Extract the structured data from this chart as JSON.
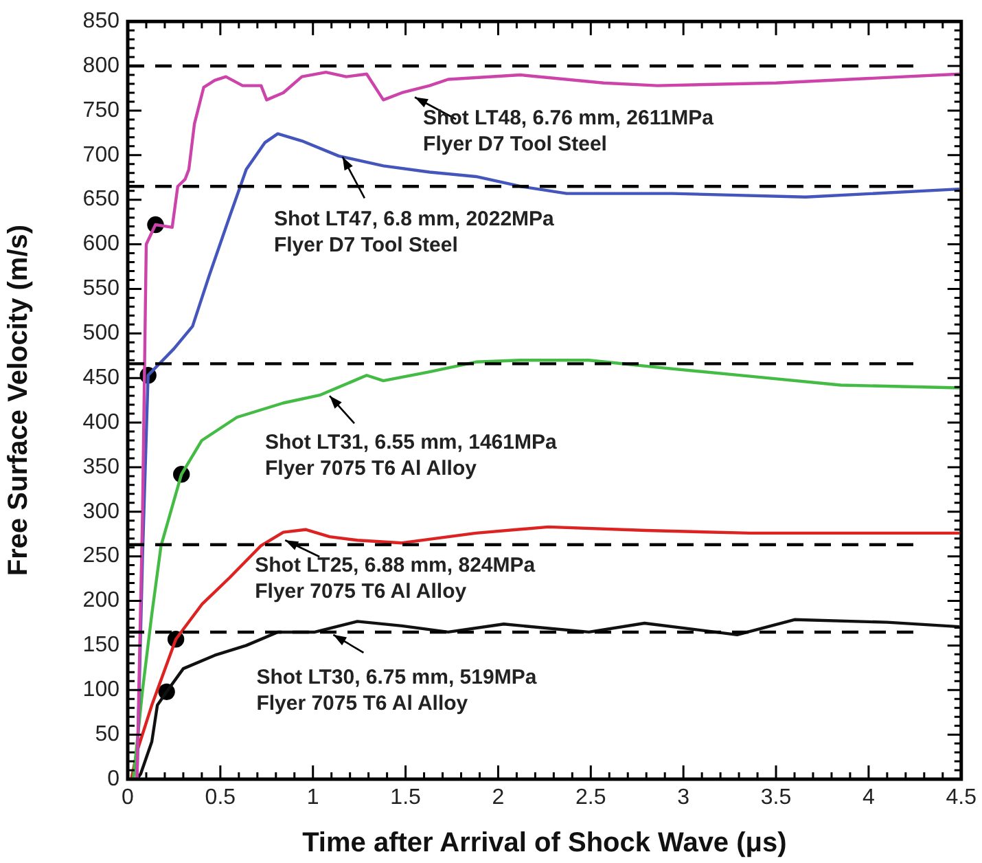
{
  "chart_data": {
    "type": "line",
    "xlabel": "Time after Arrival of Shock Wave (μs)",
    "ylabel": "Free Surface Velocity (m/s)",
    "xlim": [
      0,
      4.5
    ],
    "xticks": [
      0,
      0.5,
      1,
      1.5,
      2,
      2.5,
      3,
      3.5,
      4,
      4.5
    ],
    "ylim": [
      0,
      850
    ],
    "yticks": [
      0,
      50,
      100,
      150,
      200,
      250,
      300,
      350,
      400,
      450,
      500,
      550,
      600,
      650,
      700,
      750,
      800,
      850
    ],
    "marker": "none",
    "line_style": "solid",
    "series": [
      {
        "color": "#cc44aa",
        "x": [
          0.05,
          0.08,
          0.1,
          0.15,
          0.24,
          0.27,
          0.31,
          0.33,
          0.36,
          0.41,
          0.47,
          0.53,
          0.62,
          0.72,
          0.75,
          0.84,
          0.94,
          1.07,
          1.18,
          1.29,
          1.38,
          1.48,
          1.63,
          1.73,
          2.12,
          2.57,
          2.86,
          3.5,
          4.49
        ],
        "values": [
          0,
          300,
          600,
          622,
          619,
          665,
          673,
          684,
          735,
          776,
          784,
          788,
          778,
          778,
          762,
          770,
          788,
          793,
          788,
          791,
          762,
          770,
          778,
          785,
          790,
          781,
          778,
          781,
          791
        ]
      },
      {
        "color": "#4455bb",
        "x": [
          0.05,
          0.08,
          0.11,
          0.25,
          0.35,
          0.44,
          0.55,
          0.64,
          0.74,
          0.81,
          0.94,
          1.14,
          1.38,
          1.63,
          1.88,
          2.12,
          2.37,
          2.94,
          3.66,
          4.49
        ],
        "values": [
          0,
          250,
          453,
          483,
          508,
          565,
          631,
          684,
          714,
          724,
          716,
          699,
          688,
          681,
          676,
          665,
          657,
          657,
          653,
          662
        ]
      },
      {
        "color": "#44bb44",
        "x": [
          0.03,
          0.08,
          0.13,
          0.18,
          0.29,
          0.4,
          0.59,
          0.84,
          1.04,
          1.29,
          1.38,
          1.63,
          1.88,
          2.12,
          2.49,
          2.86,
          3.36,
          3.85,
          4.49
        ],
        "values": [
          0,
          100,
          185,
          262,
          342,
          380,
          406,
          422,
          431,
          453,
          447,
          457,
          468,
          470,
          470,
          462,
          452,
          442,
          439
        ]
      },
      {
        "color": "#dd2222",
        "x": [
          0.02,
          0.05,
          0.13,
          0.26,
          0.4,
          0.55,
          0.72,
          0.84,
          0.96,
          1.09,
          1.24,
          1.48,
          1.88,
          2.27,
          2.8,
          3.36,
          4.49
        ],
        "values": [
          0,
          31,
          83,
          157,
          196,
          226,
          262,
          277,
          280,
          272,
          268,
          265,
          276,
          283,
          279,
          276,
          276
        ]
      },
      {
        "color": "#111111",
        "x": [
          0.05,
          0.07,
          0.13,
          0.16,
          0.21,
          0.3,
          0.47,
          0.64,
          0.81,
          1.01,
          1.24,
          1.48,
          1.73,
          2.03,
          2.49,
          2.79,
          3.29,
          3.6,
          4.1,
          4.49
        ],
        "values": [
          0,
          6,
          42,
          83,
          98,
          124,
          139,
          150,
          165,
          165,
          177,
          172,
          165,
          174,
          165,
          175,
          162,
          179,
          176,
          171
        ]
      },
      {
        "type": "scatter",
        "marker": "circle",
        "color": "#000000",
        "x": [
          0.15,
          0.11,
          0.29,
          0.26,
          0.21
        ],
        "values": [
          622,
          453,
          342,
          157,
          98
        ]
      }
    ],
    "ref_lines": [
      {
        "axis": "y",
        "value": 800,
        "line_style": "dashed",
        "color": "#000000"
      },
      {
        "axis": "y",
        "value": 665,
        "line_style": "dashed",
        "color": "#000000"
      },
      {
        "axis": "y",
        "value": 466,
        "line_style": "dashed",
        "color": "#000000"
      },
      {
        "axis": "y",
        "value": 263,
        "line_style": "dashed",
        "color": "#000000"
      },
      {
        "axis": "y",
        "value": 165,
        "line_style": "dashed",
        "color": "#000000"
      }
    ],
    "annotations": [
      {
        "text": "Shot LT48, 6.76 mm, 2611MPa\nFlyer D7 Tool Steel",
        "x": 1.55,
        "y": 765
      },
      {
        "text": "Shot LT47, 6.8 mm, 2022MPa\nFlyer D7 Tool Steel",
        "x": 1.16,
        "y": 698
      },
      {
        "text": "Shot LT31, 6.55 mm, 1461MPa\nFlyer 7075 T6 Al Alloy",
        "x": 1.09,
        "y": 430
      },
      {
        "text": "Shot LT25, 6.88 mm, 824MPa\nFlyer 7075 T6 Al Alloy",
        "x": 0.85,
        "y": 268
      },
      {
        "text": "Shot LT30, 6.75 mm, 519MPa\nFlyer 7075 T6 Al Alloy",
        "x": 1.11,
        "y": 162
      }
    ]
  }
}
